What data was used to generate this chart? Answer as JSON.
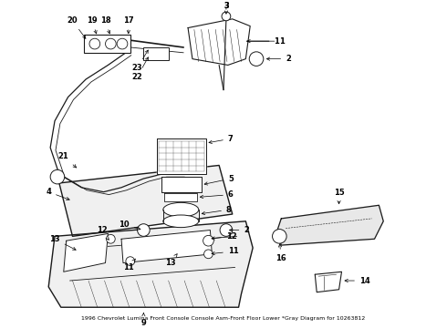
{
  "title_line1": "1996 Chevrolet Lumina Front Console Console Asm-Front Floor Lower *Gray Diagram for 10263812",
  "bg_color": "#ffffff",
  "line_color": "#1a1a1a",
  "figsize": [
    4.9,
    3.6
  ],
  "dpi": 100
}
